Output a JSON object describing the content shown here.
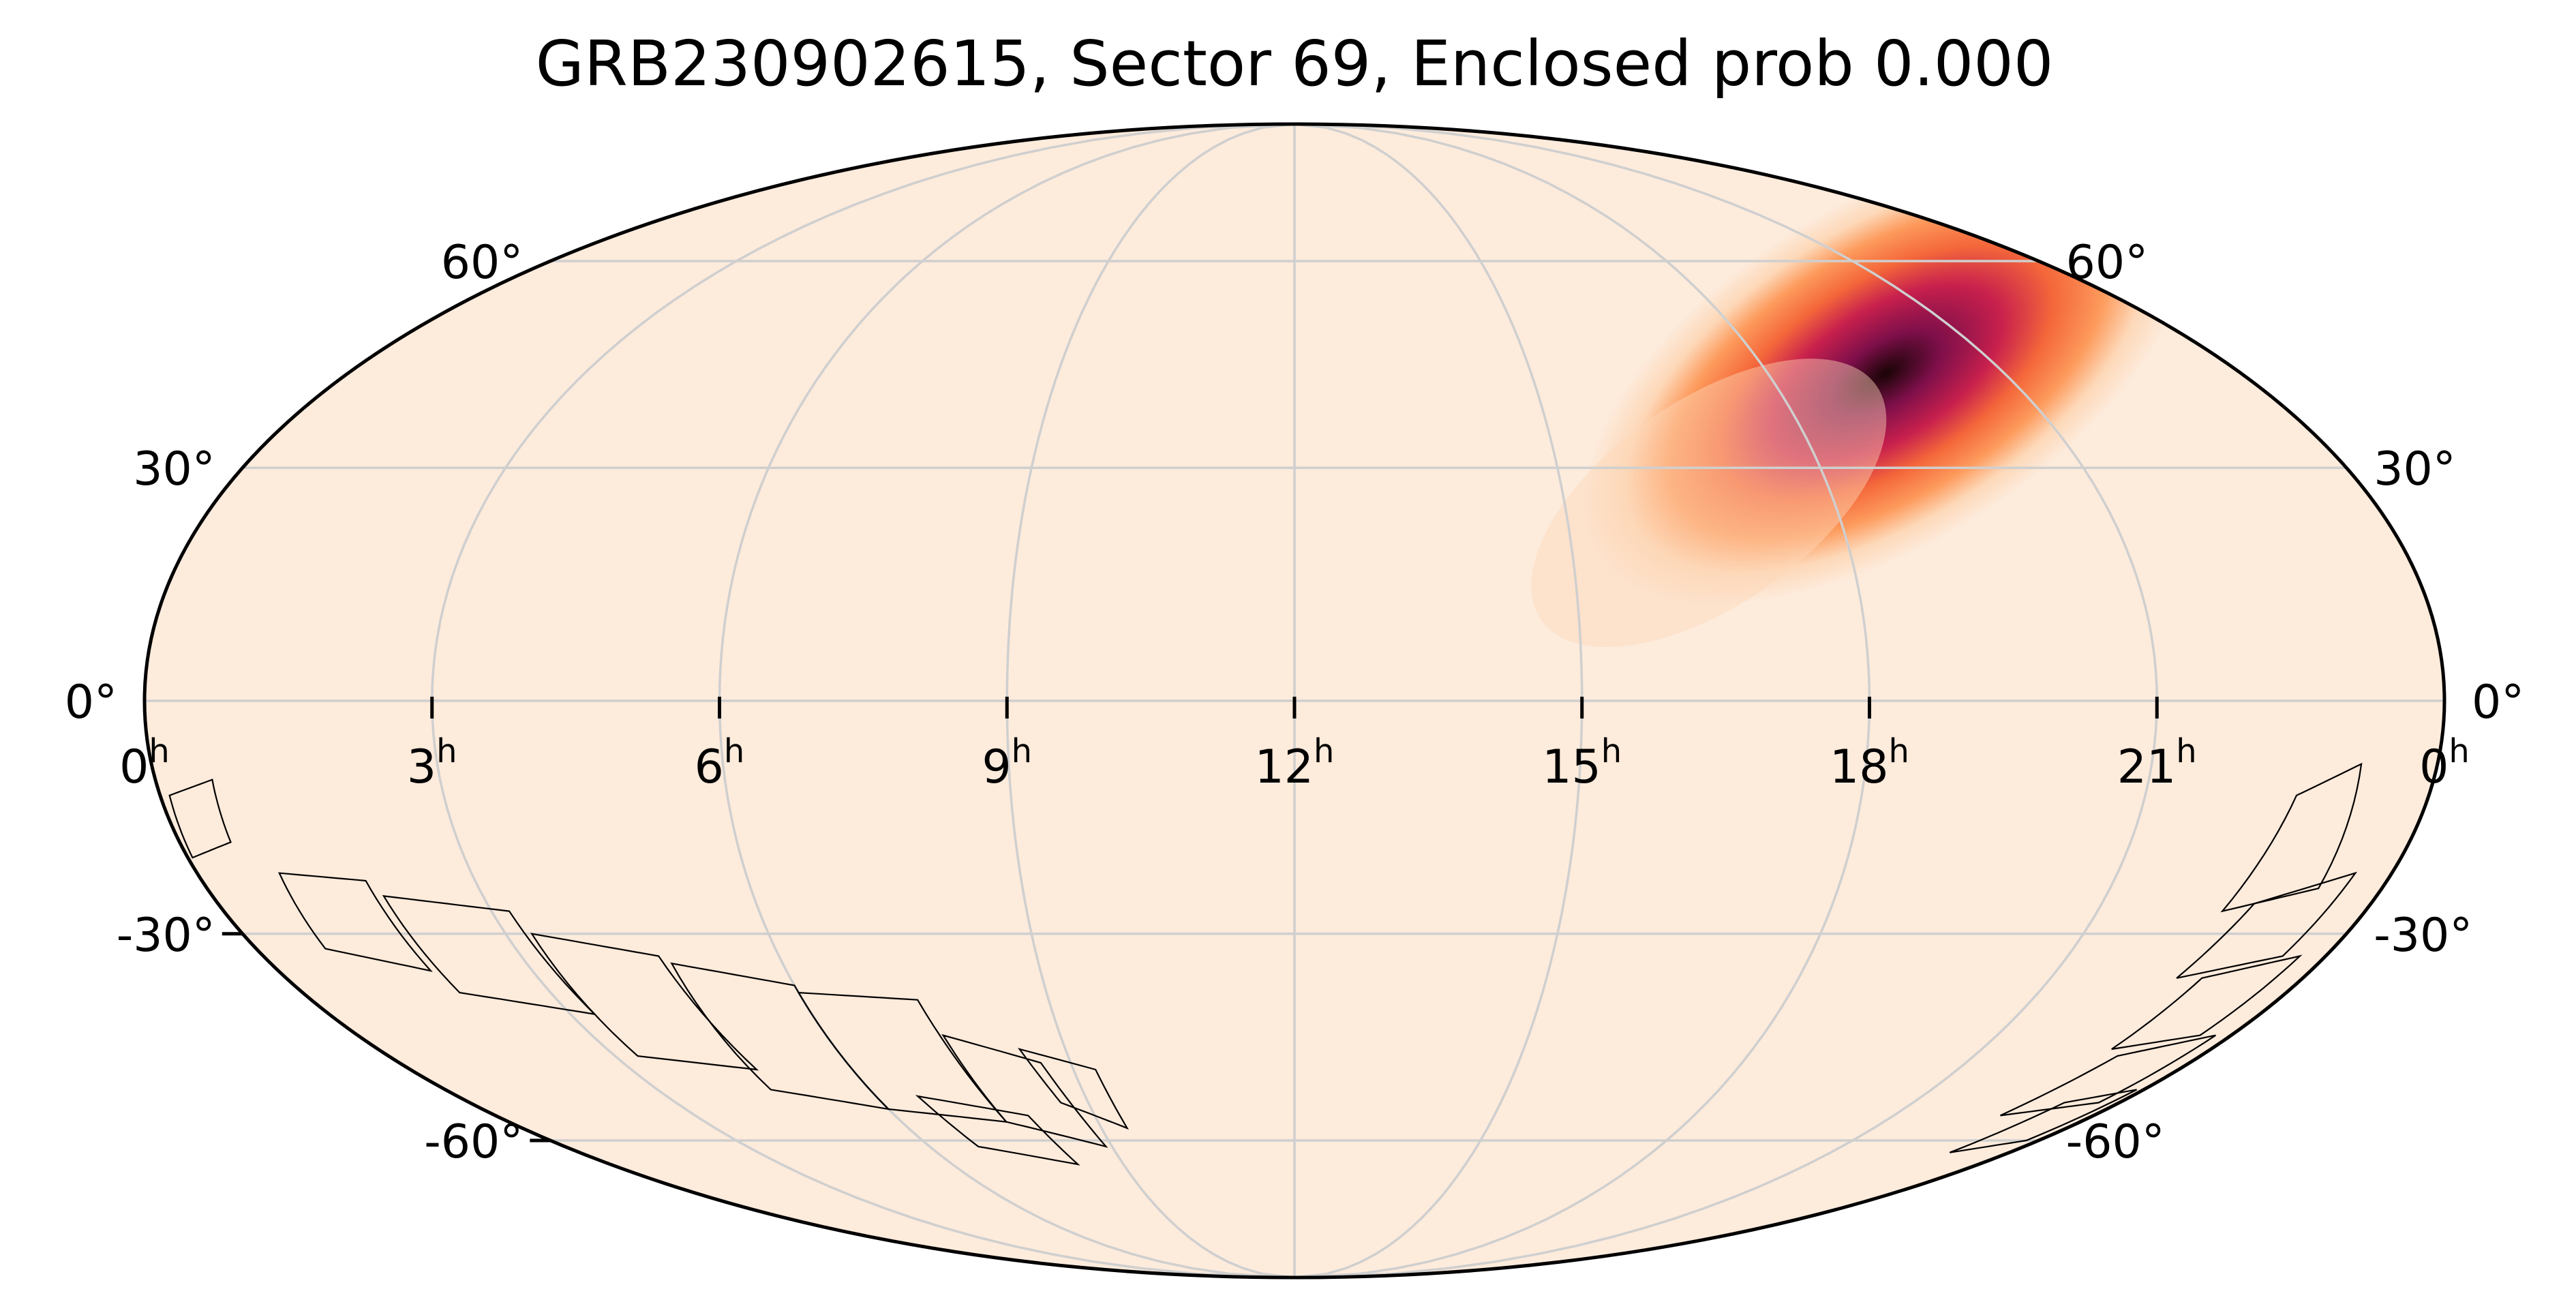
{
  "title": "GRB230902615, Sector 69, Enclosed prob 0.000",
  "projection": "mollweide",
  "colors": {
    "background": "#fdebdc",
    "grid": "#cfcfcf",
    "outline": "#000000",
    "heat_stops": [
      "#fdebdc",
      "#fdd8b8",
      "#fd9a5c",
      "#f4673a",
      "#c8204d",
      "#7e0f4a",
      "#1a0406"
    ]
  },
  "ra_labels": [
    "0h",
    "21h",
    "18h",
    "15h",
    "12h",
    "9h",
    "6h",
    "3h",
    "0h"
  ],
  "ra_labels_parts": [
    {
      "num": "0",
      "sup": "h"
    },
    {
      "num": "21",
      "sup": "h"
    },
    {
      "num": "18",
      "sup": "h"
    },
    {
      "num": "15",
      "sup": "h"
    },
    {
      "num": "12",
      "sup": "h"
    },
    {
      "num": "9",
      "sup": "h"
    },
    {
      "num": "6",
      "sup": "h"
    },
    {
      "num": "3",
      "sup": "h"
    },
    {
      "num": "0",
      "sup": "h"
    }
  ],
  "dec_labels": {
    "left": [
      "60°",
      "30°",
      "0°",
      "-30°",
      "-60°"
    ],
    "right": [
      "60°",
      "30°",
      "0°",
      "-30°",
      "-60°"
    ]
  },
  "probability_peak": {
    "ra_hours": 19.5,
    "dec_deg": 43
  },
  "footprint": "TESS Sector 69 camera tiles (southern sky)"
}
